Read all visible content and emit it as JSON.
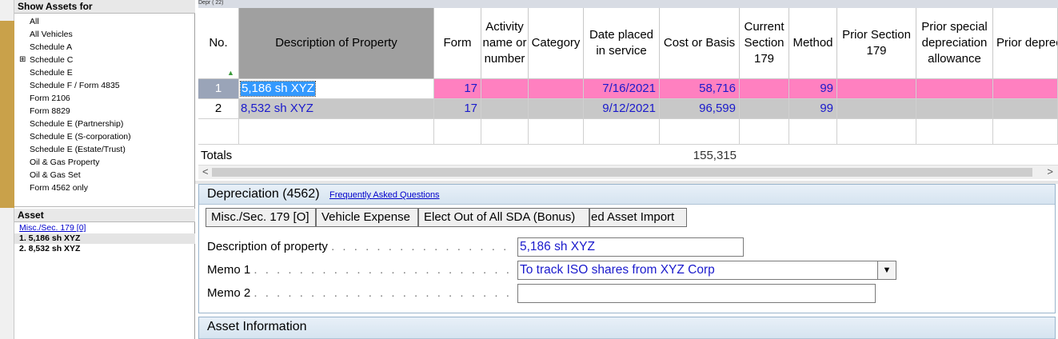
{
  "left_panel": {
    "show_assets_title": "Show Assets for",
    "tree": [
      {
        "label": "All",
        "expandable": false
      },
      {
        "label": "All Vehicles",
        "expandable": false
      },
      {
        "label": "Schedule A",
        "expandable": false
      },
      {
        "label": "Schedule C",
        "expandable": true
      },
      {
        "label": "Schedule E",
        "expandable": false
      },
      {
        "label": "Schedule F / Form 4835",
        "expandable": false
      },
      {
        "label": "Form 2106",
        "expandable": false
      },
      {
        "label": "Form 8829",
        "expandable": false
      },
      {
        "label": "Schedule E (Partnership)",
        "expandable": false
      },
      {
        "label": "Schedule E (S-corporation)",
        "expandable": false
      },
      {
        "label": "Schedule E (Estate/Trust)",
        "expandable": false
      },
      {
        "label": "Oil & Gas Property",
        "expandable": false
      },
      {
        "label": "Oil & Gas Set",
        "expandable": false
      },
      {
        "label": "Form 4562 only",
        "expandable": false
      }
    ],
    "expand_glyph": "⊞",
    "asset_title": "Asset",
    "asset_link": "Misc./Sec. 179 [0]",
    "assets": [
      "1. 5,186 sh XYZ",
      "2. 8,532 sh XYZ"
    ]
  },
  "grid": {
    "tag": "Depr ( 22)",
    "headers": {
      "no": "No.",
      "description": "Description of Property",
      "form": "Form",
      "activity": "Activity name or number",
      "category": "Category",
      "date_placed": "Date placed in service",
      "cost": "Cost or Basis",
      "sec179": "Current Section 179",
      "method": "Method",
      "prior179": "Prior Section 179",
      "prior_special": "Prior special depreciation allowance",
      "prior_depr": "Prior depreciation or amortization"
    },
    "rows": [
      {
        "no": "1",
        "description": "5,186 sh XYZ",
        "form": "17",
        "activity": "",
        "category": "",
        "date": "7/16/2021",
        "cost": "58,716",
        "sec179": "",
        "method": "99",
        "prior179": "",
        "prior_special": "",
        "prior_depr": ""
      },
      {
        "no": "2",
        "description": "8,532 sh XYZ",
        "form": "17",
        "activity": "",
        "category": "",
        "date": "9/12/2021",
        "cost": "96,599",
        "sec179": "",
        "method": "99",
        "prior179": "",
        "prior_special": "",
        "prior_depr": ""
      }
    ],
    "totals_label": "Totals",
    "totals_cost": "155,315",
    "sort_glyph": "▲",
    "scroll_left": "<",
    "scroll_right": ">"
  },
  "detail": {
    "title": "Depreciation (4562)",
    "faq_link": "Frequently Asked Questions",
    "tabs": [
      "Misc./Sec. 179 [O]",
      "Vehicle Expense",
      "Elect Out of All SDA (Bonus)",
      "ed Asset Import"
    ],
    "fields": {
      "description_label": "Description of property",
      "description_value": "5,186 sh XYZ",
      "memo1_label": "Memo 1",
      "memo1_value": "To track ISO shares from XYZ Corp",
      "memo2_label": "Memo 2",
      "memo2_value": ""
    },
    "dots": ". . . . . . . . . . . . . . . . . . . . . . . . . . . . . . . . . . . . .",
    "dropdown_glyph": "▼",
    "asset_info_title": "Asset Information"
  },
  "colors": {
    "selected_row": "#ff80c0",
    "second_row": "#c8c8c8",
    "description_header": "#a0a0a0",
    "data_text": "#1a1acc"
  }
}
